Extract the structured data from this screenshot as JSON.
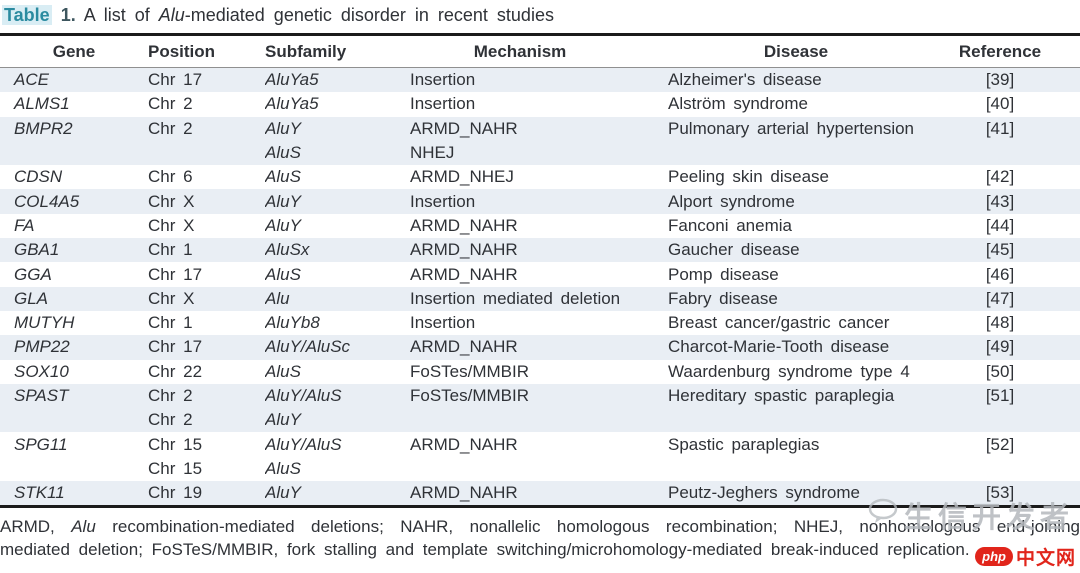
{
  "colors": {
    "accent_teal": "#2b8ba0",
    "title_highlight": "#d9edf4",
    "row_band": "#e9eef4",
    "logo_red": "#e1251b",
    "watermark_gray": "#b4b8bd"
  },
  "title": {
    "word": "Table",
    "number": "1.",
    "before": "A list of ",
    "italic": "Alu",
    "after": "-mediated genetic disorder in recent studies"
  },
  "table": {
    "headers": [
      "Gene",
      "Position",
      "Subfamily",
      "Mechanism",
      "Disease",
      "Reference"
    ],
    "rows": [
      {
        "gene": "ACE",
        "disease": "Alzheimer's disease",
        "reference": "[39]",
        "lines": [
          {
            "position": "Chr 17",
            "subfamily": "AluYa5",
            "mechanism": "Insertion"
          }
        ]
      },
      {
        "gene": "ALMS1",
        "disease": "Alström syndrome",
        "reference": "[40]",
        "lines": [
          {
            "position": "Chr 2",
            "subfamily": "AluYa5",
            "mechanism": "Insertion"
          }
        ]
      },
      {
        "gene": "BMPR2",
        "disease": "Pulmonary arterial hypertension",
        "reference": "[41]",
        "lines": [
          {
            "position": "Chr 2",
            "subfamily": "AluY",
            "mechanism": "ARMD_NAHR"
          },
          {
            "position": "",
            "subfamily": "AluS",
            "mechanism": "NHEJ"
          }
        ]
      },
      {
        "gene": "CDSN",
        "disease": "Peeling skin disease",
        "reference": "[42]",
        "lines": [
          {
            "position": "Chr 6",
            "subfamily": "AluS",
            "mechanism": "ARMD_NHEJ"
          }
        ]
      },
      {
        "gene": "COL4A5",
        "disease": "Alport syndrome",
        "reference": "[43]",
        "lines": [
          {
            "position": "Chr X",
            "subfamily": "AluY",
            "mechanism": "Insertion"
          }
        ]
      },
      {
        "gene": "FA",
        "disease": "Fanconi anemia",
        "reference": "[44]",
        "lines": [
          {
            "position": "Chr X",
            "subfamily": "AluY",
            "mechanism": "ARMD_NAHR"
          }
        ]
      },
      {
        "gene": "GBA1",
        "disease": "Gaucher disease",
        "reference": "[45]",
        "lines": [
          {
            "position": "Chr 1",
            "subfamily": "AluSx",
            "mechanism": "ARMD_NAHR"
          }
        ]
      },
      {
        "gene": "GGA",
        "disease": "Pomp disease",
        "reference": "[46]",
        "lines": [
          {
            "position": "Chr 17",
            "subfamily": "AluS",
            "mechanism": "ARMD_NAHR"
          }
        ]
      },
      {
        "gene": "GLA",
        "disease": "Fabry disease",
        "reference": "[47]",
        "lines": [
          {
            "position": "Chr X",
            "subfamily": "Alu",
            "mechanism": "Insertion mediated deletion"
          }
        ]
      },
      {
        "gene": "MUTYH",
        "disease": "Breast cancer/gastric cancer",
        "reference": "[48]",
        "lines": [
          {
            "position": "Chr 1",
            "subfamily": "AluYb8",
            "mechanism": "Insertion"
          }
        ]
      },
      {
        "gene": "PMP22",
        "disease": "Charcot-Marie-Tooth disease",
        "reference": "[49]",
        "lines": [
          {
            "position": "Chr 17",
            "subfamily": "AluY/AluSc",
            "mechanism": "ARMD_NAHR"
          }
        ]
      },
      {
        "gene": "SOX10",
        "disease": "Waardenburg syndrome type 4",
        "reference": "[50]",
        "lines": [
          {
            "position": "Chr 22",
            "subfamily": "AluS",
            "mechanism": "FoSTes/MMBIR"
          }
        ]
      },
      {
        "gene": "SPAST",
        "disease": "Hereditary spastic paraplegia",
        "reference": "[51]",
        "lines": [
          {
            "position": "Chr 2",
            "subfamily": "AluY/AluS",
            "mechanism": "FoSTes/MMBIR"
          },
          {
            "position": "Chr 2",
            "subfamily": "AluY",
            "mechanism": ""
          }
        ]
      },
      {
        "gene": "SPG11",
        "disease": "Spastic paraplegias",
        "reference": "[52]",
        "lines": [
          {
            "position": "Chr 15",
            "subfamily": "AluY/AluS",
            "mechanism": "ARMD_NAHR"
          },
          {
            "position": "Chr 15",
            "subfamily": "AluS",
            "mechanism": ""
          }
        ]
      },
      {
        "gene": "STK11",
        "disease": "Peutz-Jeghers syndrome",
        "reference": "[53]",
        "lines": [
          {
            "position": "Chr 19",
            "subfamily": "AluY",
            "mechanism": "ARMD_NAHR"
          }
        ]
      }
    ]
  },
  "footnote": {
    "part1": "ARMD, ",
    "italic": "Alu",
    "part2": " recombination-mediated deletions; NAHR, nonallelic homologous recombination; NHEJ, nonhomologous end-joining mediated deletion; FoSTeS/MMBIR, fork stalling and template switching/microhomology-mediated break-induced replication."
  },
  "watermark": {
    "text": "生信开发者"
  },
  "logo": {
    "badge": "php",
    "text": "中文网"
  }
}
